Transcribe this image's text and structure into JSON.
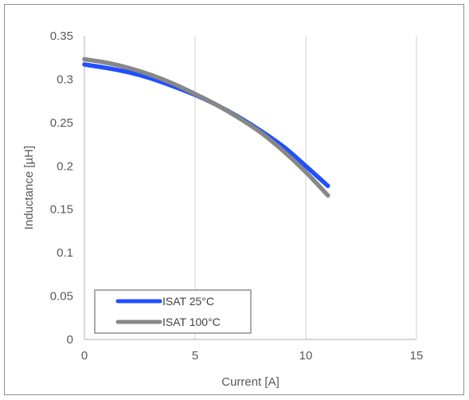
{
  "chart_data": {
    "type": "line",
    "title": "",
    "xlabel": "Current [A]",
    "ylabel": "Inductance [µH]",
    "xlim": [
      0,
      15
    ],
    "ylim": [
      0,
      0.35
    ],
    "xticks": [
      "0",
      "5",
      "10",
      "15"
    ],
    "yticks": [
      "0",
      "0.05",
      "0.1",
      "0.15",
      "0.2",
      "0.25",
      "0.3",
      "0.35"
    ],
    "grid": "vertical",
    "legend_position": "bottom-left",
    "series": [
      {
        "name": "ISAT 25°C",
        "color": "#1f4fff",
        "x": [
          0,
          1,
          2,
          3,
          4,
          5,
          6,
          7,
          8,
          9,
          10,
          11
        ],
        "y": [
          0.317,
          0.313,
          0.308,
          0.301,
          0.292,
          0.282,
          0.27,
          0.256,
          0.24,
          0.222,
          0.2,
          0.177
        ]
      },
      {
        "name": "ISAT 100°C",
        "color": "#878787",
        "x": [
          0,
          1,
          2,
          3,
          4,
          5,
          6,
          7,
          8,
          9,
          10,
          11
        ],
        "y": [
          0.323,
          0.319,
          0.313,
          0.305,
          0.295,
          0.283,
          0.27,
          0.255,
          0.238,
          0.217,
          0.193,
          0.166
        ]
      }
    ]
  }
}
